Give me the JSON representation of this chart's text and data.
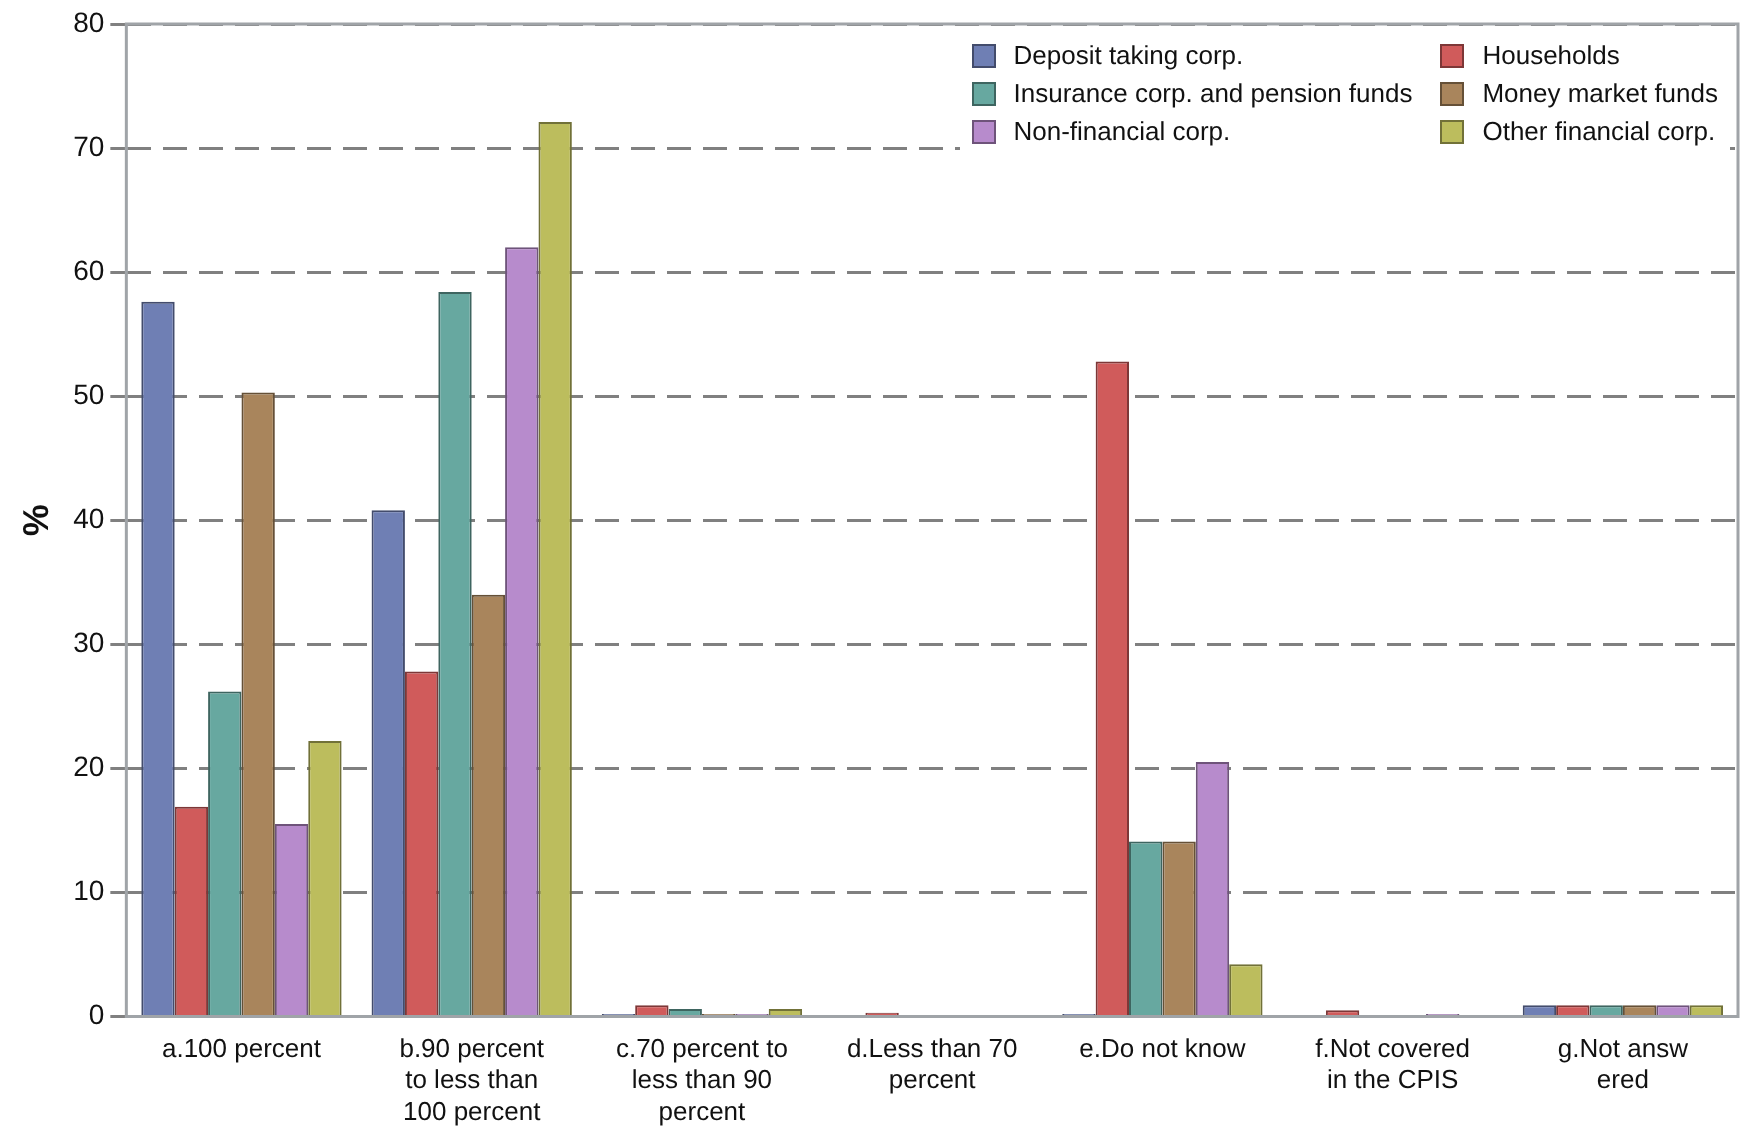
{
  "chart_data": {
    "type": "bar",
    "ylabel": "%",
    "categories": [
      "a.100 percent",
      "b.90 percent to less than 100 percent",
      "c.70 percent to less than 90 percent",
      "d.Less than 70 percent",
      "e.Do not know",
      "f.Not covered in the CPIS",
      "g.Not answ ered"
    ],
    "series": [
      {
        "name": "Deposit taking corp.",
        "color": "#6f7fb4",
        "values": [
          57.6,
          40.8,
          0.2,
          0,
          0.2,
          0,
          0.9
        ]
      },
      {
        "name": "Households",
        "color": "#d05b5b",
        "values": [
          16.9,
          27.8,
          0.9,
          0.3,
          52.8,
          0.5,
          0.9
        ]
      },
      {
        "name": "Insurance corp. and pension funds",
        "color": "#67a8a0",
        "values": [
          26.2,
          58.4,
          0.6,
          0,
          14.1,
          0,
          0.9
        ]
      },
      {
        "name": "Money market funds",
        "color": "#a9855c",
        "values": [
          50.3,
          34.0,
          0.2,
          0,
          14.1,
          0,
          0.9
        ]
      },
      {
        "name": "Non-financial corp.",
        "color": "#b78bcc",
        "values": [
          15.5,
          62.0,
          0.2,
          0,
          20.5,
          0.2,
          0.9
        ]
      },
      {
        "name": "Other financial corp.",
        "color": "#bcbd5d",
        "values": [
          22.2,
          72.1,
          0.6,
          0,
          4.2,
          0,
          0.9
        ]
      }
    ],
    "ylim": [
      0,
      80
    ],
    "yticks": [
      0,
      10,
      20,
      30,
      40,
      50,
      60,
      70,
      80
    ],
    "grid": "y",
    "line_style": "dashed",
    "legend": "top right"
  }
}
